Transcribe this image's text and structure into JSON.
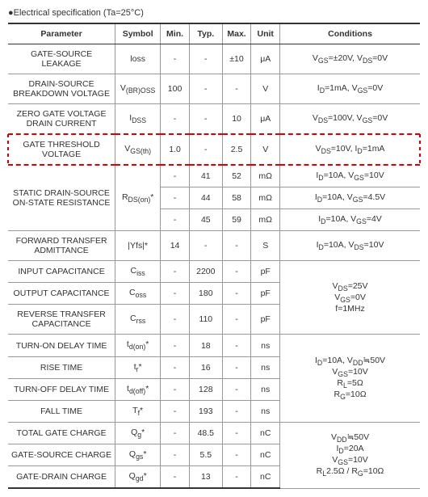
{
  "title": "●Electrical specification (Ta=25°C)",
  "headers": [
    "Parameter",
    "Symbol",
    "Min.",
    "Typ.",
    "Max.",
    "Unit",
    "Conditions"
  ],
  "rows": [
    {
      "p": "GATE-SOURCE LEAKAGE",
      "s": "loss",
      "min": "-",
      "typ": "-",
      "max": "±10",
      "u": "μA",
      "c": "V<sub>GS</sub>=±20V, V<sub>DS</sub>=0V"
    },
    {
      "p": "DRAIN-SOURCE BREAKDOWN VOLTAGE",
      "s": "V<sub>(BR)OSS</sub>",
      "min": "100",
      "typ": "-",
      "max": "-",
      "u": "V",
      "c": "I<sub>D</sub>=1mA, V<sub>GS</sub>=0V"
    },
    {
      "p": "ZERO GATE VOLTAGE DRAIN CURRENT",
      "s": "I<sub>DSS</sub>",
      "min": "-",
      "typ": "-",
      "max": "10",
      "u": "μA",
      "c": "V<sub>DS</sub>=100V, V<sub>GS</sub>=0V"
    },
    {
      "p": "GATE THRESHOLD VOLTAGE",
      "s": "V<sub>GS(th)</sub>",
      "min": "1.0",
      "typ": "-",
      "max": "2.5",
      "u": "V",
      "c": "V<sub>DS</sub>=10V, I<sub>D</sub>=1mA",
      "hl": true
    },
    {
      "p": "STATIC DRAIN-SOURCE ON-STATE RESISTANCE",
      "s": "R<sub>DS(on)</sub>*",
      "rspan": 3,
      "min": "-",
      "typ": "41",
      "max": "52",
      "u": "mΩ",
      "c": "I<sub>D</sub>=10A, V<sub>GS</sub>=10V"
    },
    {
      "min": "-",
      "typ": "44",
      "max": "58",
      "u": "mΩ",
      "c": "I<sub>D</sub>=10A, V<sub>GS</sub>=4.5V"
    },
    {
      "min": "-",
      "typ": "45",
      "max": "59",
      "u": "mΩ",
      "c": "I<sub>D</sub>=10A, V<sub>GS</sub>=4V"
    },
    {
      "p": "FORWARD TRANSFER ADMITTANCE",
      "s": "|Yfs|*",
      "min": "14",
      "typ": "-",
      "max": "-",
      "u": "S",
      "c": "I<sub>D</sub>=10A, V<sub>DS</sub>=10V"
    },
    {
      "p": "INPUT CAPACITANCE",
      "s": "C<sub>iss</sub>",
      "min": "-",
      "typ": "2200",
      "max": "-",
      "u": "pF",
      "c": "V<sub>DS</sub>=25V<br>V<sub>GS</sub>=0V<br>f=1MHz",
      "crspan": 3
    },
    {
      "p": "OUTPUT CAPACITANCE",
      "s": "C<sub>oss</sub>",
      "min": "-",
      "typ": "180",
      "max": "-",
      "u": "pF"
    },
    {
      "p": "REVERSE TRANSFER CAPACITANCE",
      "s": "C<sub>rss</sub>",
      "min": "-",
      "typ": "110",
      "max": "-",
      "u": "pF"
    },
    {
      "p": "TURN-ON DELAY TIME",
      "s": "t<sub>d(on)</sub>*",
      "min": "-",
      "typ": "18",
      "max": "-",
      "u": "ns",
      "c": "I<sub>D</sub>=10A, V<sub>DD</sub>≒50V<br>V<sub>GS</sub>=10V<br>R<sub>L</sub>=5Ω<br>R<sub>G</sub>=10Ω",
      "crspan": 4
    },
    {
      "p": "RISE TIME",
      "s": "t<sub>r</sub>*",
      "min": "-",
      "typ": "16",
      "max": "-",
      "u": "ns"
    },
    {
      "p": "TURN-OFF DELAY TIME",
      "s": "t<sub>d(off)</sub>*",
      "min": "-",
      "typ": "128",
      "max": "-",
      "u": "ns"
    },
    {
      "p": "FALL TIME",
      "s": "T<sub>f</sub>*",
      "min": "-",
      "typ": "193",
      "max": "-",
      "u": "ns"
    },
    {
      "p": "TOTAL GATE CHARGE",
      "s": "Q<sub>g</sub>*",
      "min": "-",
      "typ": "48.5",
      "max": "-",
      "u": "nC",
      "c": "V<sub>DD</sub>≒50V<br>I<sub>D</sub>=20A<br>V<sub>GS</sub>=10V<br>R<sub>L</sub>2.5Ω / R<sub>G</sub>=10Ω",
      "crspan": 3
    },
    {
      "p": "GATE-SOURCE CHARGE",
      "s": "Q<sub>gs</sub>*",
      "min": "-",
      "typ": "5.5",
      "max": "-",
      "u": "nC"
    },
    {
      "p": "GATE-DRAIN CHARGE",
      "s": "Q<sub>gd</sub>*",
      "min": "-",
      "typ": "13",
      "max": "-",
      "u": "nC"
    }
  ]
}
